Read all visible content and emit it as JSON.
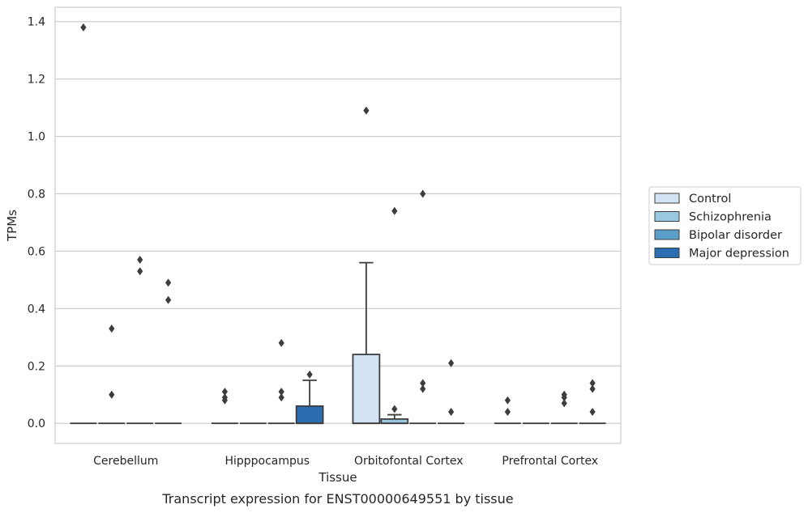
{
  "caption": "Transcript expression for ENST00000649551 by tissue",
  "chart_data": {
    "type": "box",
    "xlabel": "Tissue",
    "ylabel": "TPMs",
    "ylim": [
      -0.07,
      1.45
    ],
    "yticks": [
      "0.0",
      "0.2",
      "0.4",
      "0.6",
      "0.8",
      "1.0",
      "1.2",
      "1.4"
    ],
    "grid": "horizontal",
    "legend_placement": "right",
    "categories": [
      "Cerebellum",
      "Hipppocampus",
      "Orbitofontal Cortex",
      "Prefrontal Cortex"
    ],
    "series": [
      {
        "name": "Control",
        "color": "#d2e3f3",
        "boxes": [
          {
            "q1": 0,
            "median": 0,
            "q3": 0,
            "whisker_low": 0,
            "whisker_high": 0,
            "outliers": [
              1.38
            ]
          },
          {
            "q1": 0,
            "median": 0,
            "q3": 0,
            "whisker_low": 0,
            "whisker_high": 0,
            "outliers": [
              0.08,
              0.09,
              0.11
            ]
          },
          {
            "q1": 0,
            "median": 0,
            "q3": 0.24,
            "whisker_low": 0,
            "whisker_high": 0.56,
            "outliers": [
              1.09
            ]
          },
          {
            "q1": 0,
            "median": 0,
            "q3": 0,
            "whisker_low": 0,
            "whisker_high": 0,
            "outliers": [
              0.04,
              0.08
            ]
          }
        ]
      },
      {
        "name": "Schizophrenia",
        "color": "#9ac8e0",
        "boxes": [
          {
            "q1": 0,
            "median": 0,
            "q3": 0,
            "whisker_low": 0,
            "whisker_high": 0,
            "outliers": [
              0.1,
              0.33
            ]
          },
          {
            "q1": 0,
            "median": 0,
            "q3": 0,
            "whisker_low": 0,
            "whisker_high": 0,
            "outliers": []
          },
          {
            "q1": 0,
            "median": 0,
            "q3": 0.015,
            "whisker_low": 0,
            "whisker_high": 0.03,
            "outliers": [
              0.05,
              0.74
            ]
          },
          {
            "q1": 0,
            "median": 0,
            "q3": 0,
            "whisker_low": 0,
            "whisker_high": 0,
            "outliers": []
          }
        ]
      },
      {
        "name": "Bipolar disorder",
        "color": "#5a9ec9",
        "boxes": [
          {
            "q1": 0,
            "median": 0,
            "q3": 0,
            "whisker_low": 0,
            "whisker_high": 0,
            "outliers": [
              0.53,
              0.57
            ]
          },
          {
            "q1": 0,
            "median": 0,
            "q3": 0,
            "whisker_low": 0,
            "whisker_high": 0,
            "outliers": [
              0.09,
              0.11,
              0.28
            ]
          },
          {
            "q1": 0,
            "median": 0,
            "q3": 0,
            "whisker_low": 0,
            "whisker_high": 0,
            "outliers": [
              0.12,
              0.14,
              0.8
            ]
          },
          {
            "q1": 0,
            "median": 0,
            "q3": 0,
            "whisker_low": 0,
            "whisker_high": 0,
            "outliers": [
              0.07,
              0.09,
              0.1
            ]
          }
        ]
      },
      {
        "name": "Major depression",
        "color": "#2a6db0",
        "boxes": [
          {
            "q1": 0,
            "median": 0,
            "q3": 0,
            "whisker_low": 0,
            "whisker_high": 0,
            "outliers": [
              0.43,
              0.49
            ]
          },
          {
            "q1": 0,
            "median": 0,
            "q3": 0.06,
            "whisker_low": 0,
            "whisker_high": 0.15,
            "outliers": [
              0.17
            ]
          },
          {
            "q1": 0,
            "median": 0,
            "q3": 0,
            "whisker_low": 0,
            "whisker_high": 0,
            "outliers": [
              0.04,
              0.21
            ]
          },
          {
            "q1": 0,
            "median": 0,
            "q3": 0,
            "whisker_low": 0,
            "whisker_high": 0,
            "outliers": [
              0.04,
              0.12,
              0.14
            ]
          }
        ]
      }
    ]
  }
}
